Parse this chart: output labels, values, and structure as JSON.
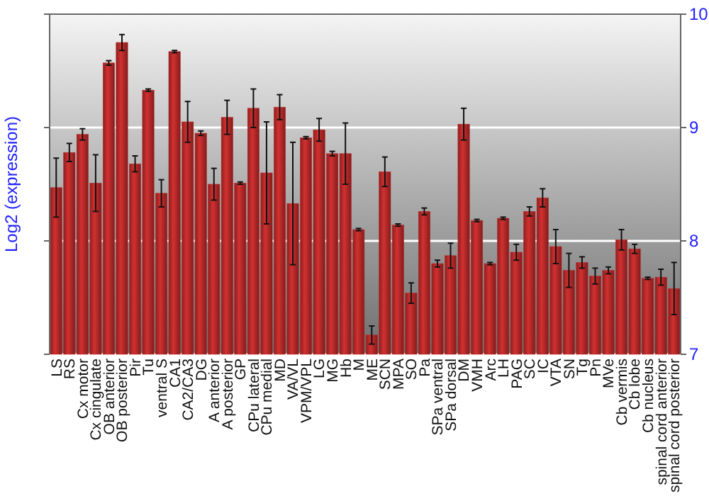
{
  "chart_data": {
    "type": "bar",
    "ylabel": "Log2 (expression)",
    "categories": [
      "LS",
      "RS",
      "Cx motor",
      "Cx cingulate",
      "OB anterior",
      "OB posterior",
      "Pir",
      "Tu",
      "ventral S",
      "CA1",
      "CA2/CA3",
      "DG",
      "A anterior",
      "A posterior",
      "GP",
      "CPu lateral",
      "CPu medial",
      "MD",
      "VA/VL",
      "VPM/VPL",
      "LG",
      "MG",
      "Hb",
      "M",
      "ME",
      "SCN",
      "MPA",
      "SO",
      "Pa",
      "SPa ventral",
      "SPa dorsal",
      "DM",
      "VMH",
      "Arc",
      "LH",
      "PAG",
      "SC",
      "IC",
      "VTA",
      "SN",
      "Tg",
      "Pn",
      "MVe",
      "Cb vermis",
      "Cb lobe",
      "Cb nucleus",
      "spinal cord anterior",
      "spinal cord posterior"
    ],
    "values": [
      8.47,
      8.78,
      8.94,
      8.51,
      9.57,
      9.75,
      8.68,
      9.33,
      8.42,
      9.67,
      9.05,
      8.95,
      8.5,
      9.09,
      8.51,
      9.17,
      8.6,
      9.18,
      8.33,
      8.91,
      8.98,
      8.77,
      8.77,
      8.1,
      7.17,
      8.61,
      8.14,
      7.54,
      8.26,
      7.8,
      7.87,
      9.03,
      8.18,
      7.8,
      8.2,
      7.9,
      8.26,
      8.38,
      7.95,
      7.74,
      7.81,
      7.69,
      7.74,
      8.01,
      7.93,
      7.67,
      7.68,
      7.58
    ],
    "errors": [
      0.26,
      0.08,
      0.05,
      0.25,
      0.02,
      0.07,
      0.07,
      0.01,
      0.12,
      0.01,
      0.18,
      0.02,
      0.14,
      0.15,
      0.01,
      0.17,
      0.45,
      0.11,
      0.54,
      0.01,
      0.1,
      0.02,
      0.27,
      0.01,
      0.08,
      0.13,
      0.01,
      0.09,
      0.03,
      0.03,
      0.11,
      0.14,
      0.01,
      0.01,
      0.01,
      0.07,
      0.04,
      0.08,
      0.15,
      0.15,
      0.05,
      0.07,
      0.03,
      0.09,
      0.04,
      0.01,
      0.07,
      0.23
    ],
    "color": "#b82a2a",
    "ylim": [
      7,
      10
    ],
    "yticks": [
      7,
      8,
      9,
      10
    ],
    "grid": "y"
  }
}
